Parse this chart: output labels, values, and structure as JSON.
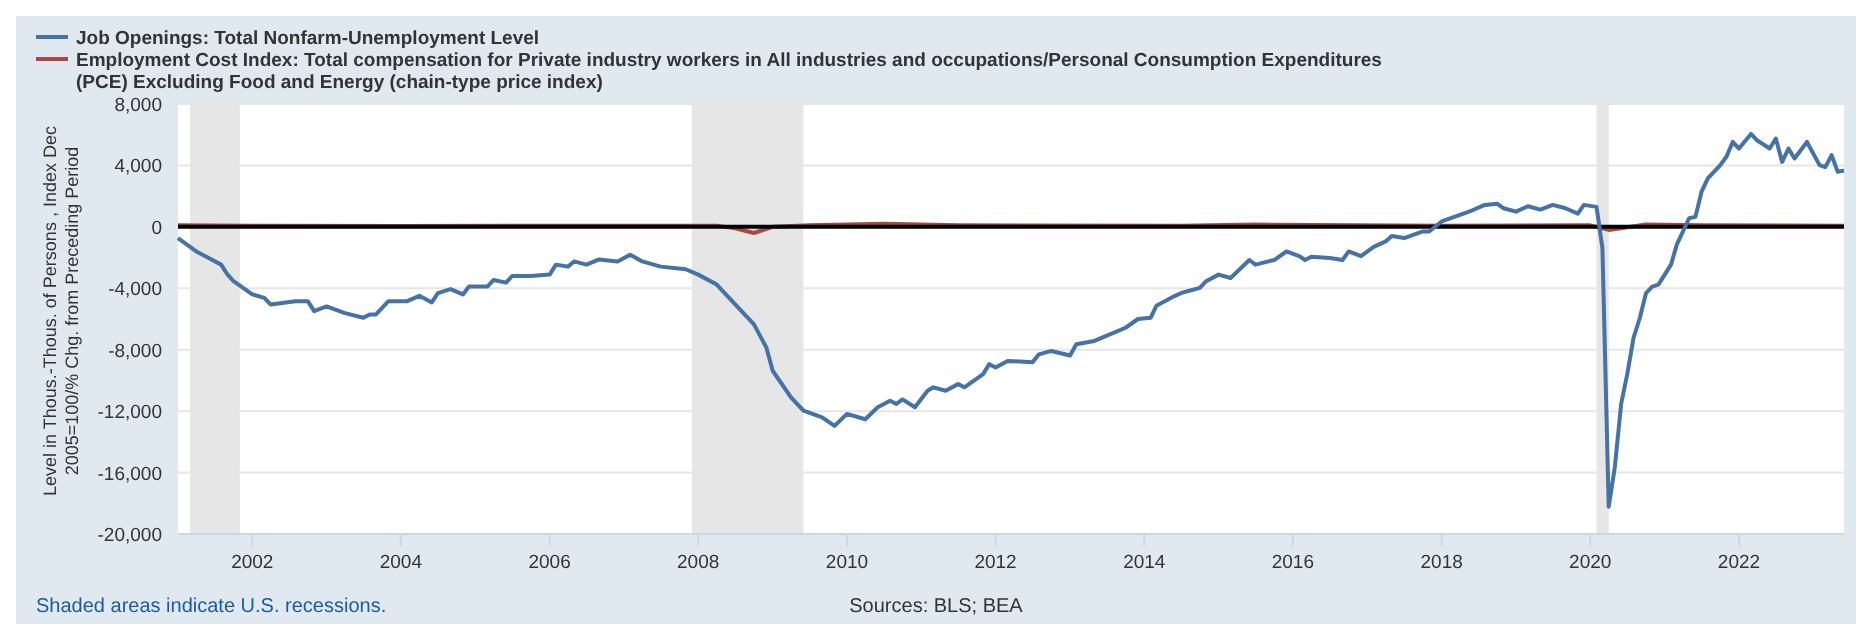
{
  "chart_data": {
    "type": "line",
    "ylabel": "Level in Thous.-Thous. of Persons , Index Dec 2005=100/% Chg. from Preceding Period",
    "legend": "top left",
    "grid": "y",
    "marker": "none",
    "line_style": "solid",
    "xlim": [
      "2001-01",
      "2023-06"
    ],
    "xticks": [
      "2002",
      "2004",
      "2006",
      "2008",
      "2010",
      "2012",
      "2014",
      "2016",
      "2018",
      "2020",
      "2022"
    ],
    "ylim": [
      -20000,
      8000
    ],
    "yticks": [
      {
        "value": -20000,
        "label": "-20,000"
      },
      {
        "value": -16000,
        "label": "-16,000"
      },
      {
        "value": -12000,
        "label": "-12,000"
      },
      {
        "value": -8000,
        "label": "-8,000"
      },
      {
        "value": -4000,
        "label": "-4,000"
      },
      0,
      {
        "value": 4000,
        "label": "4,000"
      },
      {
        "value": 8000,
        "label": "8,000"
      }
    ],
    "bands": [
      {
        "axis": "x",
        "from": "2001-03",
        "to": "2001-11",
        "color": "#e6e6e6"
      },
      {
        "axis": "x",
        "from": "2007-12",
        "to": "2009-06",
        "color": "#e6e6e6"
      },
      {
        "axis": "x",
        "from": "2020-02",
        "to": "2020-04",
        "color": "#e6e6e6"
      }
    ],
    "ref_lines": [
      {
        "axis": "y",
        "value": 0,
        "color": "#000000"
      }
    ],
    "annotations": [
      "Shaded areas indicate U.S. recessions.",
      "Sources: BLS; BEA"
    ],
    "series": [
      {
        "name": "Job Openings: Total Nonfarm-Unemployment Level",
        "color": "#4572a7",
        "x": [
          "2001-01",
          "2001-04",
          "2001-06",
          "2001-08",
          "2001-09",
          "2001-10",
          "2002-01",
          "2002-03",
          "2002-04",
          "2002-08",
          "2002-10",
          "2002-11",
          "2003-01",
          "2003-04",
          "2003-07",
          "2003-08",
          "2003-09",
          "2003-11",
          "2004-02",
          "2004-04",
          "2004-06",
          "2004-07",
          "2004-09",
          "2004-11",
          "2004-12",
          "2005-03",
          "2005-04",
          "2005-06",
          "2005-07",
          "2005-10",
          "2006-01",
          "2006-02",
          "2006-04",
          "2006-05",
          "2006-07",
          "2006-09",
          "2006-12",
          "2007-02",
          "2007-04",
          "2007-07",
          "2007-11",
          "2008-01",
          "2008-04",
          "2008-07",
          "2008-10",
          "2008-12",
          "2009-01",
          "2009-04",
          "2009-06",
          "2009-09",
          "2009-11",
          "2010-01",
          "2010-04",
          "2010-06",
          "2010-08",
          "2010-09",
          "2010-10",
          "2010-12",
          "2011-02",
          "2011-03",
          "2011-05",
          "2011-07",
          "2011-08",
          "2011-11",
          "2011-12",
          "2012-01",
          "2012-03",
          "2012-07",
          "2012-08",
          "2012-10",
          "2013-01",
          "2013-02",
          "2013-05",
          "2013-07",
          "2013-10",
          "2013-12",
          "2014-02",
          "2014-03",
          "2014-06",
          "2014-07",
          "2014-08",
          "2014-10",
          "2014-11",
          "2015-01",
          "2015-03",
          "2015-06",
          "2015-07",
          "2015-10",
          "2015-12",
          "2016-02",
          "2016-03",
          "2016-04",
          "2016-07",
          "2016-09",
          "2016-10",
          "2016-12",
          "2017-02",
          "2017-04",
          "2017-05",
          "2017-07",
          "2017-10",
          "2017-11",
          "2018-01",
          "2018-04",
          "2018-06",
          "2018-08",
          "2018-10",
          "2018-11",
          "2019-01",
          "2019-03",
          "2019-05",
          "2019-07",
          "2019-09",
          "2019-11",
          "2019-12",
          "2020-02",
          "2020-03",
          "2020-04",
          "2020-05",
          "2020-06",
          "2020-07",
          "2020-08",
          "2020-09",
          "2020-10",
          "2020-11",
          "2020-12",
          "2021-02",
          "2021-03",
          "2021-05",
          "2021-06",
          "2021-07",
          "2021-08",
          "2021-10",
          "2021-11",
          "2021-12",
          "2022-01",
          "2022-03",
          "2022-04",
          "2022-06",
          "2022-07",
          "2022-08",
          "2022-09",
          "2022-10",
          "2022-12",
          "2023-02",
          "2023-03",
          "2023-04",
          "2023-05",
          "2023-06"
        ],
        "values": [
          -730,
          -1600,
          -2030,
          -2460,
          -3100,
          -3540,
          -4400,
          -4620,
          -5050,
          -4840,
          -4840,
          -5490,
          -5180,
          -5620,
          -5920,
          -5700,
          -5700,
          -4840,
          -4840,
          -4490,
          -4920,
          -4320,
          -4060,
          -4400,
          -3890,
          -3890,
          -3460,
          -3630,
          -3200,
          -3200,
          -3110,
          -2460,
          -2590,
          -2250,
          -2460,
          -2120,
          -2250,
          -1810,
          -2250,
          -2590,
          -2760,
          -3110,
          -3760,
          -5050,
          -6350,
          -7860,
          -9370,
          -11100,
          -11970,
          -12400,
          -12960,
          -12180,
          -12530,
          -11750,
          -11320,
          -11530,
          -11230,
          -11750,
          -10670,
          -10450,
          -10670,
          -10240,
          -10450,
          -9590,
          -8940,
          -9160,
          -8730,
          -8810,
          -8300,
          -8080,
          -8380,
          -7650,
          -7430,
          -7080,
          -6570,
          -6000,
          -5920,
          -5140,
          -4490,
          -4320,
          -4190,
          -3970,
          -3540,
          -3110,
          -3330,
          -2160,
          -2460,
          -2160,
          -1600,
          -1900,
          -2160,
          -1950,
          -2030,
          -2160,
          -1600,
          -1900,
          -1300,
          -950,
          -600,
          -730,
          -300,
          -300,
          350,
          780,
          1080,
          1430,
          1510,
          1210,
          990,
          1340,
          1120,
          1430,
          1210,
          860,
          1430,
          1300,
          -1380,
          -18230,
          -15640,
          -11530,
          -9590,
          -7220,
          -5920,
          -4320,
          -3890,
          -3760,
          -2460,
          -1170,
          560,
          650,
          2290,
          3150,
          4020,
          4580,
          5530,
          5100,
          6050,
          5620,
          5100,
          5750,
          4230,
          5100,
          4450,
          5530,
          4020,
          3890,
          4670,
          3590,
          3670
        ]
      },
      {
        "name": "Employment Cost Index: Total compensation for Private industry workers in All industries and occupations/Personal Consumption Expenditures (PCE) Excluding Food and Energy (chain-type price index)",
        "color": "#aa4643",
        "x": [
          "2001-01",
          "2002-01",
          "2004-01",
          "2006-01",
          "2008-04",
          "2008-07",
          "2008-10",
          "2009-01",
          "2009-07",
          "2010-07",
          "2011-07",
          "2014-07",
          "2015-07",
          "2018-01",
          "2020-01",
          "2020-04",
          "2020-10",
          "2021-07",
          "2023-06"
        ],
        "values": [
          100,
          80,
          60,
          80,
          80,
          -100,
          -400,
          0,
          100,
          200,
          100,
          80,
          150,
          80,
          100,
          -200,
          150,
          100,
          80
        ]
      }
    ]
  }
}
